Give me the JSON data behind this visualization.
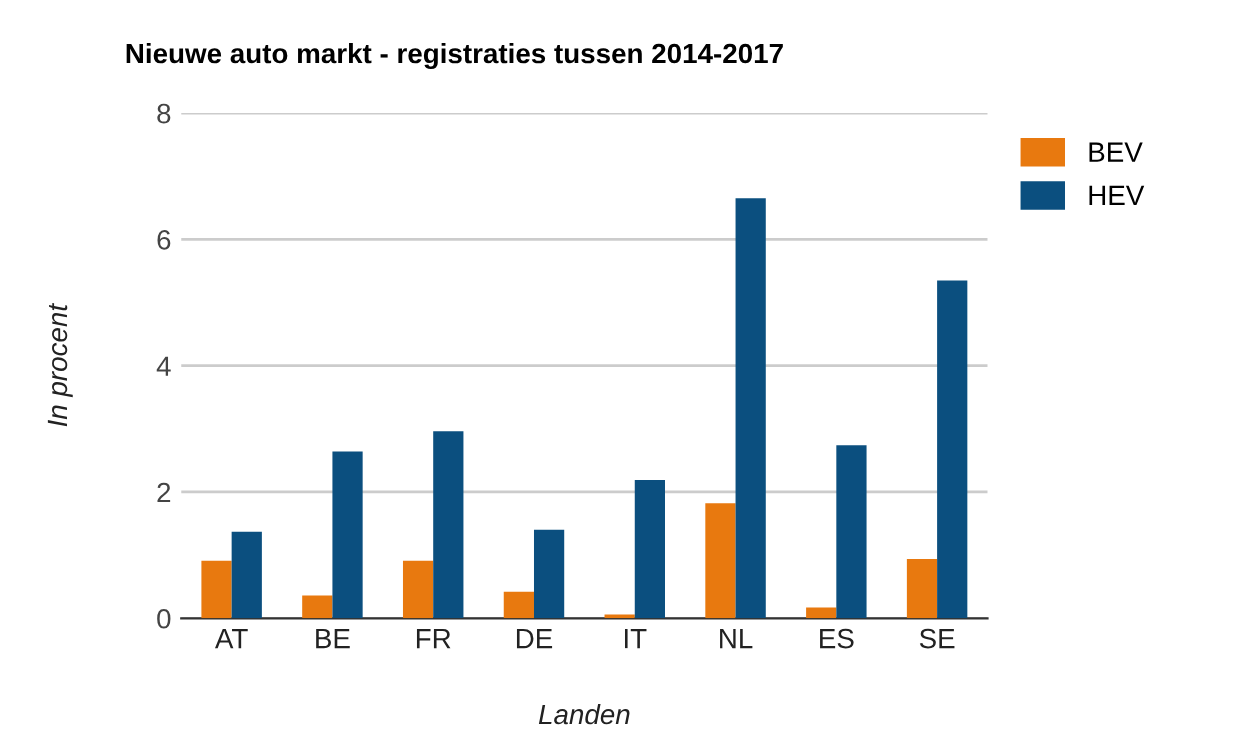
{
  "chart_data": {
    "type": "bar",
    "title": "Nieuwe auto markt - registraties tussen 2014-2017",
    "xlabel": "Landen",
    "ylabel": "In procent",
    "categories": [
      "AT",
      "BE",
      "FR",
      "DE",
      "IT",
      "NL",
      "ES",
      "SE"
    ],
    "series": [
      {
        "name": "BEV",
        "color": "#e8790f",
        "values": [
          0.91,
          0.36,
          0.91,
          0.42,
          0.06,
          1.82,
          0.17,
          0.94
        ]
      },
      {
        "name": "HEV",
        "color": "#0b4f7f",
        "values": [
          1.37,
          2.64,
          2.96,
          1.4,
          2.19,
          6.65,
          2.74,
          5.35
        ]
      }
    ],
    "ylim": [
      0,
      8
    ],
    "yticks": [
      0,
      2,
      4,
      6,
      8
    ],
    "grid": "y",
    "legend": "top right"
  }
}
